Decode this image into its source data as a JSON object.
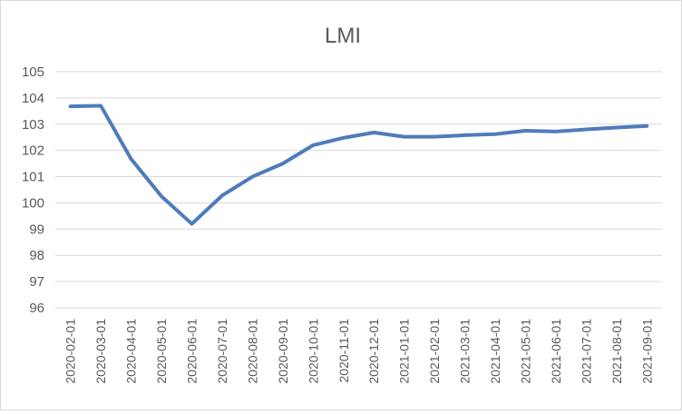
{
  "chart_data": {
    "type": "line",
    "title": "LMI",
    "xlabel": "",
    "ylabel": "",
    "ylim": [
      96,
      105
    ],
    "yticks": [
      "96",
      "97",
      "98",
      "99",
      "100",
      "101",
      "102",
      "103",
      "104",
      "105"
    ],
    "grid": true,
    "legend": "none",
    "categories": [
      "2020-02-01",
      "2020-03-01",
      "2020-04-01",
      "2020-05-01",
      "2020-06-01",
      "2020-07-01",
      "2020-08-01",
      "2020-09-01",
      "2020-10-01",
      "2020-11-01",
      "2020-12-01",
      "2021-01-01",
      "2021-02-01",
      "2021-03-01",
      "2021-04-01",
      "2021-05-01",
      "2021-06-01",
      "2021-07-01",
      "2021-08-01",
      "2021-09-01"
    ],
    "series": [
      {
        "values": [
          103.68,
          103.7,
          101.67,
          100.25,
          99.2,
          100.28,
          101.0,
          101.5,
          102.2,
          102.48,
          102.68,
          102.52,
          102.52,
          102.58,
          102.62,
          102.75,
          102.72,
          102.8,
          102.87,
          102.93
        ],
        "color": "#4f7cba"
      }
    ],
    "colors": {
      "grid": "#d9d9d9",
      "text": "#595959",
      "line": "#4f7cba"
    }
  }
}
